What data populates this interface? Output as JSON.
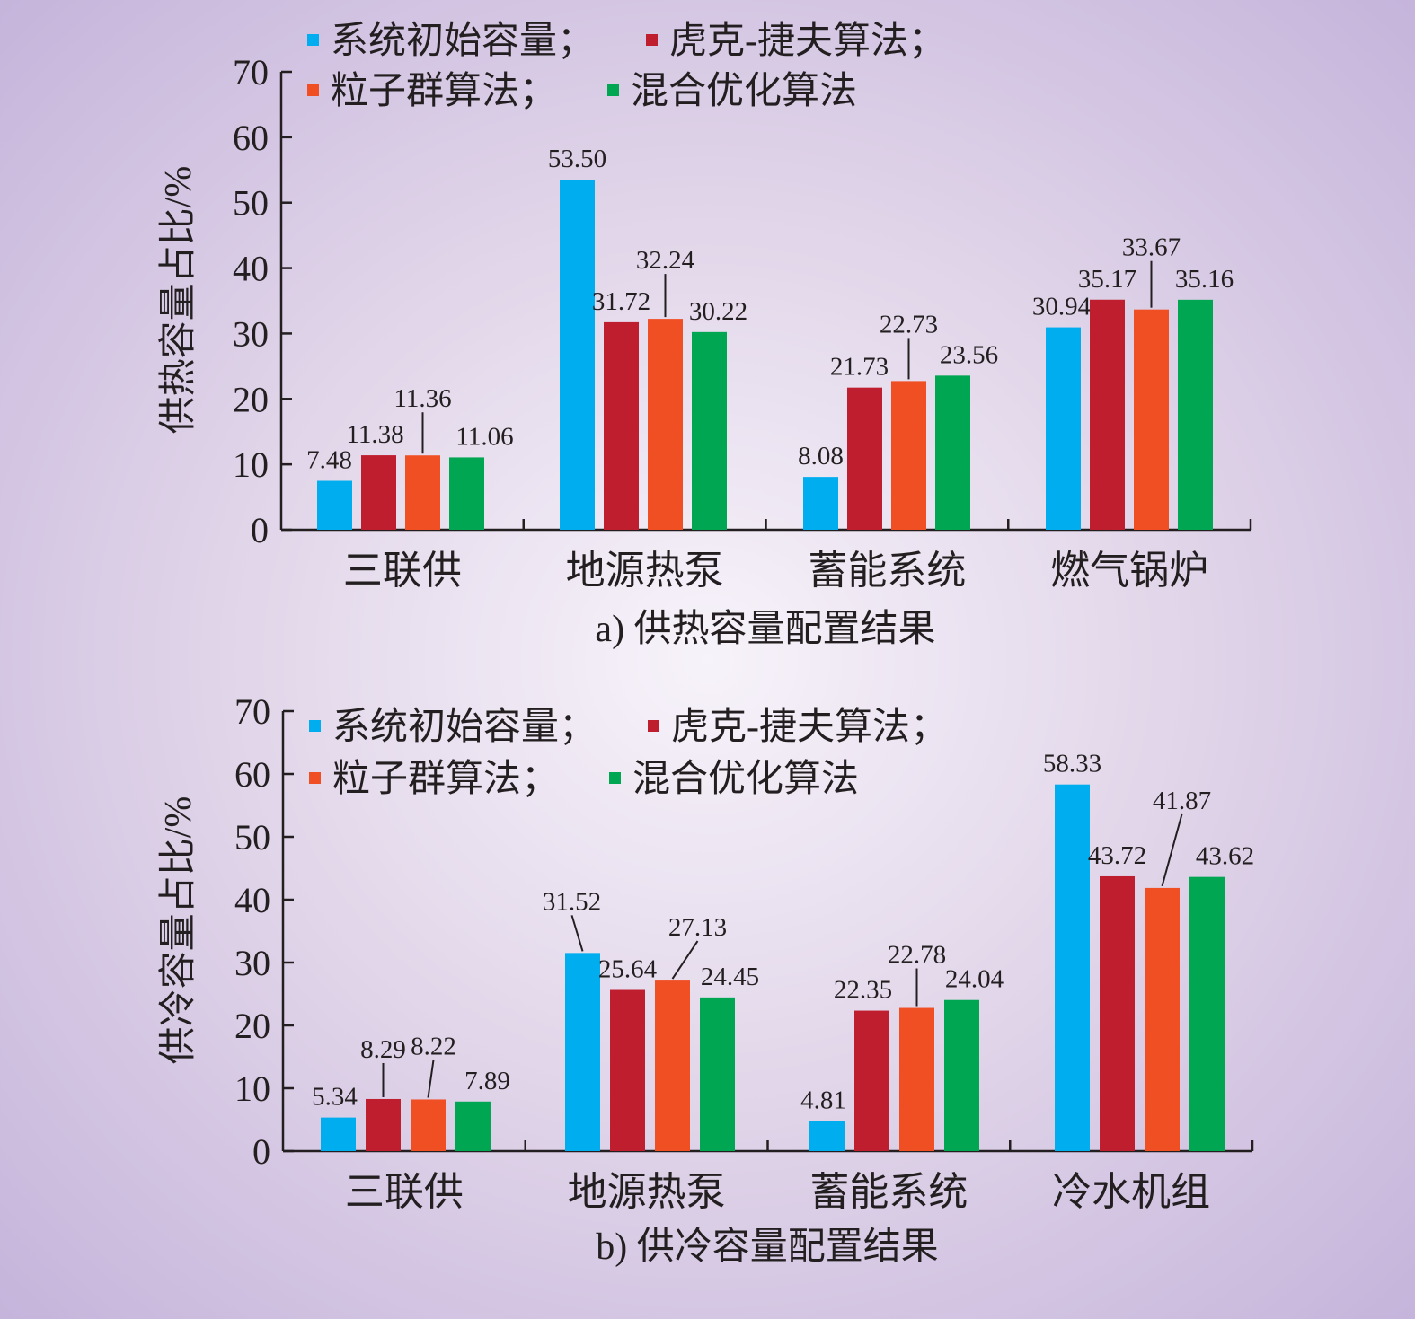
{
  "chart_data": [
    {
      "type": "bar",
      "caption": "a) 供热容量配置结果",
      "ylabel": "供热容量占比/%",
      "ylim": [
        0,
        70
      ],
      "yticks": [
        0,
        10,
        20,
        30,
        40,
        50,
        60,
        70
      ],
      "categories": [
        "三联供",
        "地源热泵",
        "蓄能系统",
        "燃气锅炉"
      ],
      "series": [
        {
          "name": "系统初始容量；",
          "color": "#00aeef",
          "values": [
            7.48,
            53.5,
            8.08,
            30.94
          ]
        },
        {
          "name": "虎克-捷夫算法；",
          "color": "#be1e2d",
          "values": [
            11.38,
            31.72,
            21.73,
            35.17
          ]
        },
        {
          "name": "粒子群算法；",
          "color": "#f04e23",
          "values": [
            11.36,
            32.24,
            22.73,
            33.67
          ]
        },
        {
          "name": "混合优化算法",
          "color": "#00a651",
          "values": [
            11.06,
            30.22,
            23.56,
            35.16
          ]
        }
      ],
      "data_labels": [
        [
          "7.48",
          "53.50",
          "8.08",
          "30.94"
        ],
        [
          "11.38",
          "31.72",
          "21.73",
          "35.17"
        ],
        [
          "11.36",
          "32.24",
          "22.73",
          "33.67"
        ],
        [
          "11.06",
          "30.22",
          "23.56",
          "35.16"
        ]
      ],
      "legend_position": "top-left"
    },
    {
      "type": "bar",
      "caption": "b) 供冷容量配置结果",
      "ylabel": "供冷容量占比/%",
      "ylim": [
        0,
        70
      ],
      "yticks": [
        0,
        10,
        20,
        30,
        40,
        50,
        60,
        70
      ],
      "categories": [
        "三联供",
        "地源热泵",
        "蓄能系统",
        "冷水机组"
      ],
      "series": [
        {
          "name": "系统初始容量；",
          "color": "#00aeef",
          "values": [
            5.34,
            31.52,
            4.81,
            58.33
          ]
        },
        {
          "name": "虎克-捷夫算法；",
          "color": "#be1e2d",
          "values": [
            8.29,
            25.64,
            22.35,
            43.72
          ]
        },
        {
          "name": "粒子群算法；",
          "color": "#f04e23",
          "values": [
            8.22,
            27.13,
            22.78,
            41.87
          ]
        },
        {
          "name": "混合优化算法",
          "color": "#00a651",
          "values": [
            7.89,
            24.45,
            24.04,
            43.62
          ]
        }
      ],
      "data_labels": [
        [
          "5.34",
          "31.52",
          "4.81",
          "58.33"
        ],
        [
          "8.29",
          "25.64",
          "22.35",
          "43.72"
        ],
        [
          "8.22",
          "27.13",
          "22.78",
          "41.87"
        ],
        [
          "7.89",
          "24.45",
          "24.04",
          "43.62"
        ]
      ],
      "legend_position": "top-left"
    }
  ]
}
